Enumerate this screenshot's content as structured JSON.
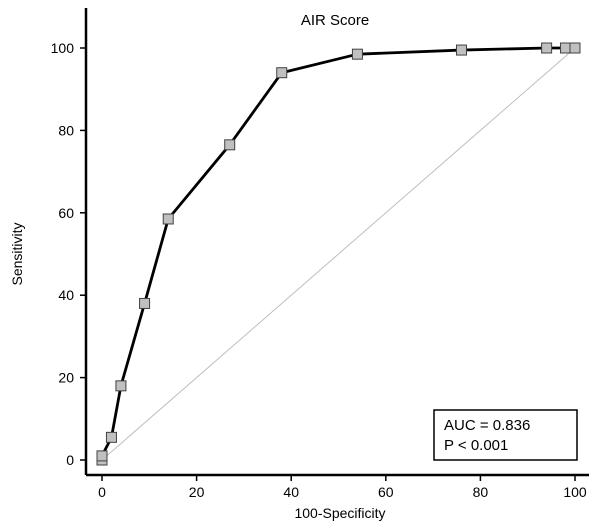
{
  "chart_data": {
    "type": "line",
    "title": "AIR Score",
    "xlabel": "100-Specificity",
    "ylabel": "Sensitivity",
    "xlim": [
      0,
      100
    ],
    "ylim": [
      0,
      100
    ],
    "xticks": [
      "0",
      "20",
      "40",
      "60",
      "80",
      "100"
    ],
    "yticks": [
      "0",
      "20",
      "40",
      "60",
      "80",
      "100"
    ],
    "grid": false,
    "series": [
      {
        "x": [
          0,
          0,
          2,
          4,
          9,
          14,
          27,
          38,
          54,
          76,
          94,
          98,
          100
        ],
        "y": [
          0,
          1,
          5.5,
          18,
          38,
          58.5,
          76.5,
          94,
          98.5,
          99.5,
          100,
          100,
          100
        ],
        "color": "#000000",
        "marker": "square",
        "marker_color": "#c0c0c0"
      }
    ],
    "reference_line": {
      "x": [
        0,
        100
      ],
      "y": [
        0,
        100
      ],
      "color": "#bdbdbd"
    },
    "annotation": {
      "lines": [
        "AUC = 0.836",
        "P < 0.001"
      ],
      "placement": "bottom-right"
    }
  }
}
